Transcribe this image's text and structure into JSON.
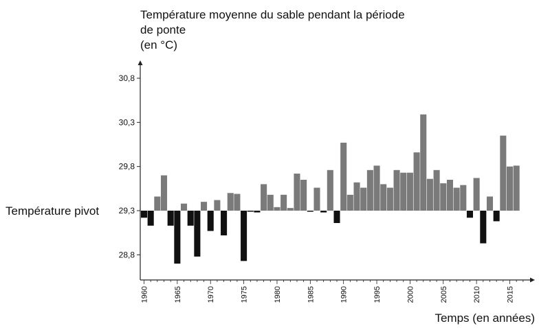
{
  "chart_data": {
    "type": "bar",
    "title_lines": [
      "Température moyenne du sable pendant la période",
      "de ponte",
      "(en °C)"
    ],
    "xlabel": "Temps (en années)",
    "pivot_label": "Température pivot",
    "baseline": 29.3,
    "ylim": [
      28.5,
      30.95
    ],
    "xlim": [
      1960,
      2017
    ],
    "y_ticks": [
      28.8,
      29.3,
      29.8,
      30.3,
      30.8
    ],
    "y_tick_labels": [
      "28,8",
      "29,3",
      "29,8",
      "30,3",
      "30,8"
    ],
    "x_tick_labels": [
      "1960",
      "1965",
      "1970",
      "1975",
      "1980",
      "1985",
      "1990",
      "1995",
      "2000",
      "2005",
      "2010",
      "2015"
    ],
    "colors": {
      "above": "#7a7a7a",
      "below": "#111111",
      "axis": "#222222"
    },
    "years": [
      1960,
      1961,
      1962,
      1963,
      1964,
      1965,
      1966,
      1967,
      1968,
      1969,
      1970,
      1971,
      1972,
      1973,
      1974,
      1975,
      1976,
      1977,
      1978,
      1979,
      1980,
      1981,
      1982,
      1983,
      1984,
      1985,
      1986,
      1987,
      1988,
      1989,
      1990,
      1991,
      1992,
      1993,
      1994,
      1995,
      1996,
      1997,
      1998,
      1999,
      2000,
      2001,
      2002,
      2003,
      2004,
      2005,
      2006,
      2007,
      2008,
      2009,
      2010,
      2011,
      2012,
      2013,
      2014,
      2015,
      2016
    ],
    "values": [
      29.22,
      29.13,
      29.46,
      29.7,
      29.13,
      28.7,
      29.38,
      29.13,
      28.78,
      29.4,
      29.07,
      29.42,
      29.02,
      29.5,
      29.49,
      28.73,
      29.29,
      29.28,
      29.6,
      29.48,
      29.34,
      29.48,
      29.33,
      29.72,
      29.65,
      29.29,
      29.56,
      29.28,
      29.76,
      29.16,
      30.07,
      29.48,
      29.62,
      29.56,
      29.76,
      29.81,
      29.6,
      29.56,
      29.76,
      29.73,
      29.73,
      29.96,
      30.39,
      29.66,
      29.76,
      29.61,
      29.65,
      29.56,
      29.59,
      29.22,
      29.67,
      28.93,
      29.46,
      29.18,
      30.15,
      29.8,
      29.81
    ]
  }
}
